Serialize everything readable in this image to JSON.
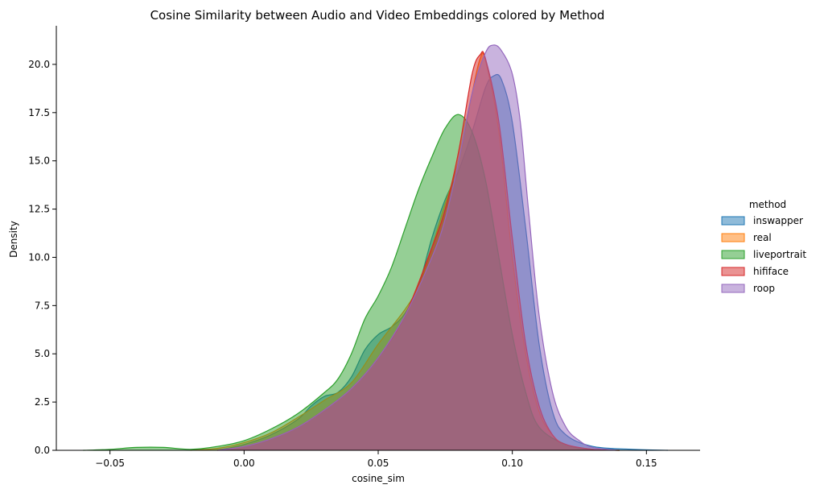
{
  "chart_data": {
    "type": "area",
    "title": "Cosine Similarity between Audio and Video Embeddings colored by Method",
    "xlabel": "cosine_sim",
    "ylabel": "Density",
    "xlim": [
      -0.07,
      0.17
    ],
    "ylim": [
      0,
      22
    ],
    "xticks": [
      "−0.05",
      "0.00",
      "0.05",
      "0.10",
      "0.15"
    ],
    "xtick_values": [
      -0.05,
      0.0,
      0.05,
      0.1,
      0.15
    ],
    "yticks": [
      "0.0",
      "2.5",
      "5.0",
      "7.5",
      "10.0",
      "12.5",
      "15.0",
      "17.5",
      "20.0"
    ],
    "ytick_values": [
      0,
      2.5,
      5,
      7.5,
      10,
      12.5,
      15,
      17.5,
      20
    ],
    "grid": false,
    "legend": {
      "title": "method",
      "placement": "right"
    },
    "series": [
      {
        "name": "inswapper",
        "color": "#1f77b4",
        "points": [
          [
            -0.01,
            0
          ],
          [
            0.0,
            0.3
          ],
          [
            0.01,
            0.8
          ],
          [
            0.02,
            1.6
          ],
          [
            0.025,
            2.3
          ],
          [
            0.03,
            2.8
          ],
          [
            0.035,
            3.0
          ],
          [
            0.04,
            3.8
          ],
          [
            0.045,
            5.2
          ],
          [
            0.05,
            6.0
          ],
          [
            0.055,
            6.4
          ],
          [
            0.06,
            7.1
          ],
          [
            0.065,
            8.5
          ],
          [
            0.07,
            11.0
          ],
          [
            0.075,
            13.0
          ],
          [
            0.08,
            14.5
          ],
          [
            0.085,
            16.5
          ],
          [
            0.09,
            18.8
          ],
          [
            0.093,
            19.4
          ],
          [
            0.096,
            19.2
          ],
          [
            0.1,
            17.0
          ],
          [
            0.105,
            11.5
          ],
          [
            0.11,
            5.5
          ],
          [
            0.115,
            2.0
          ],
          [
            0.12,
            0.8
          ],
          [
            0.13,
            0.2
          ],
          [
            0.145,
            0.05
          ],
          [
            0.158,
            0
          ]
        ]
      },
      {
        "name": "real",
        "color": "#ff7f0e",
        "points": [
          [
            -0.02,
            0
          ],
          [
            -0.01,
            0.1
          ],
          [
            0.0,
            0.4
          ],
          [
            0.01,
            0.9
          ],
          [
            0.02,
            1.7
          ],
          [
            0.03,
            2.6
          ],
          [
            0.04,
            3.5
          ],
          [
            0.05,
            5.5
          ],
          [
            0.06,
            7.3
          ],
          [
            0.065,
            8.5
          ],
          [
            0.07,
            10.5
          ],
          [
            0.075,
            12.8
          ],
          [
            0.08,
            15.0
          ],
          [
            0.085,
            18.5
          ],
          [
            0.088,
            20.3
          ],
          [
            0.09,
            20.2
          ],
          [
            0.095,
            16.5
          ],
          [
            0.1,
            10.0
          ],
          [
            0.105,
            5.0
          ],
          [
            0.11,
            2.0
          ],
          [
            0.115,
            0.8
          ],
          [
            0.12,
            0.3
          ],
          [
            0.13,
            0.05
          ],
          [
            0.14,
            0
          ]
        ]
      },
      {
        "name": "liveportrait",
        "color": "#2ca02c",
        "points": [
          [
            -0.06,
            0
          ],
          [
            -0.05,
            0.05
          ],
          [
            -0.04,
            0.15
          ],
          [
            -0.03,
            0.15
          ],
          [
            -0.02,
            0.05
          ],
          [
            -0.01,
            0.2
          ],
          [
            0.0,
            0.5
          ],
          [
            0.01,
            1.1
          ],
          [
            0.02,
            1.9
          ],
          [
            0.03,
            3.0
          ],
          [
            0.035,
            3.7
          ],
          [
            0.04,
            5.0
          ],
          [
            0.045,
            6.8
          ],
          [
            0.05,
            8.0
          ],
          [
            0.055,
            9.5
          ],
          [
            0.06,
            11.5
          ],
          [
            0.065,
            13.5
          ],
          [
            0.07,
            15.2
          ],
          [
            0.075,
            16.7
          ],
          [
            0.08,
            17.4
          ],
          [
            0.085,
            16.5
          ],
          [
            0.09,
            14.0
          ],
          [
            0.095,
            10.0
          ],
          [
            0.1,
            6.0
          ],
          [
            0.105,
            3.0
          ],
          [
            0.11,
            1.2
          ],
          [
            0.12,
            0.3
          ],
          [
            0.13,
            0.05
          ],
          [
            0.14,
            0
          ]
        ]
      },
      {
        "name": "hififace",
        "color": "#d62728",
        "points": [
          [
            -0.01,
            0
          ],
          [
            0.0,
            0.2
          ],
          [
            0.01,
            0.6
          ],
          [
            0.02,
            1.2
          ],
          [
            0.03,
            2.1
          ],
          [
            0.04,
            3.2
          ],
          [
            0.05,
            4.8
          ],
          [
            0.06,
            7.0
          ],
          [
            0.07,
            10.5
          ],
          [
            0.075,
            12.5
          ],
          [
            0.08,
            15.5
          ],
          [
            0.085,
            19.5
          ],
          [
            0.088,
            20.5
          ],
          [
            0.09,
            20.3
          ],
          [
            0.095,
            17.0
          ],
          [
            0.1,
            11.0
          ],
          [
            0.105,
            5.5
          ],
          [
            0.11,
            2.3
          ],
          [
            0.115,
            0.8
          ],
          [
            0.12,
            0.3
          ],
          [
            0.13,
            0.05
          ],
          [
            0.14,
            0
          ]
        ]
      },
      {
        "name": "roop",
        "color": "#9467bd",
        "points": [
          [
            -0.01,
            0
          ],
          [
            0.0,
            0.2
          ],
          [
            0.01,
            0.6
          ],
          [
            0.02,
            1.2
          ],
          [
            0.03,
            2.1
          ],
          [
            0.04,
            3.2
          ],
          [
            0.05,
            4.8
          ],
          [
            0.06,
            7.0
          ],
          [
            0.07,
            10.0
          ],
          [
            0.075,
            12.0
          ],
          [
            0.08,
            15.0
          ],
          [
            0.085,
            18.5
          ],
          [
            0.09,
            20.6
          ],
          [
            0.093,
            21.0
          ],
          [
            0.096,
            20.7
          ],
          [
            0.1,
            19.5
          ],
          [
            0.103,
            17.0
          ],
          [
            0.106,
            12.5
          ],
          [
            0.11,
            7.0
          ],
          [
            0.115,
            3.0
          ],
          [
            0.12,
            1.2
          ],
          [
            0.125,
            0.5
          ],
          [
            0.13,
            0.15
          ],
          [
            0.14,
            0
          ]
        ]
      }
    ]
  }
}
